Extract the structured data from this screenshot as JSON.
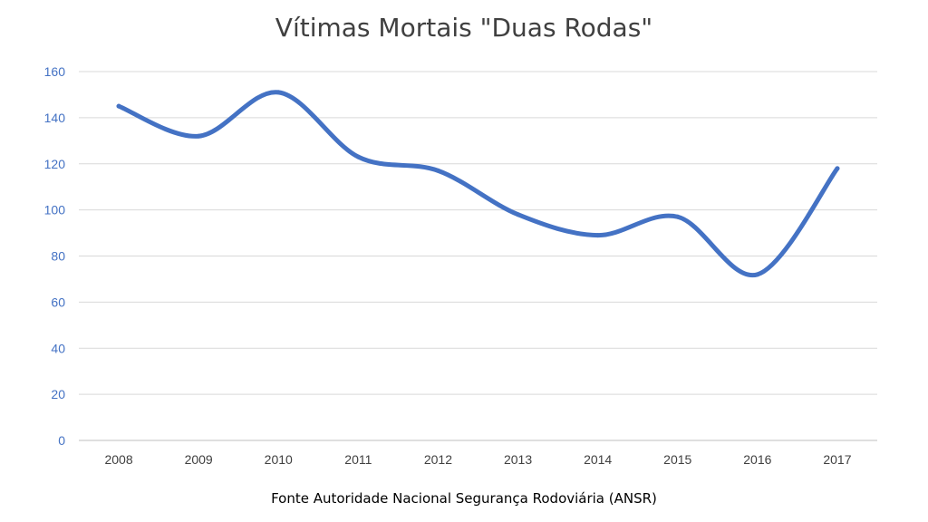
{
  "chart_data": {
    "type": "line",
    "title": "Vítimas Mortais \"Duas Rodas\"",
    "categories": [
      "2008",
      "2009",
      "2010",
      "2011",
      "2012",
      "2013",
      "2014",
      "2015",
      "2016",
      "2017"
    ],
    "series": [
      {
        "values": [
          145,
          132,
          151,
          123,
          117,
          98,
          89,
          97,
          72,
          118
        ],
        "color": "#4472c4"
      }
    ],
    "ylim": [
      0,
      160
    ],
    "yticks": [
      0,
      20,
      40,
      60,
      80,
      100,
      120,
      140,
      160
    ],
    "grid": true,
    "smooth": true,
    "source": "Fonte Autoridade Nacional Segurança Rodoviária (ANSR)"
  }
}
